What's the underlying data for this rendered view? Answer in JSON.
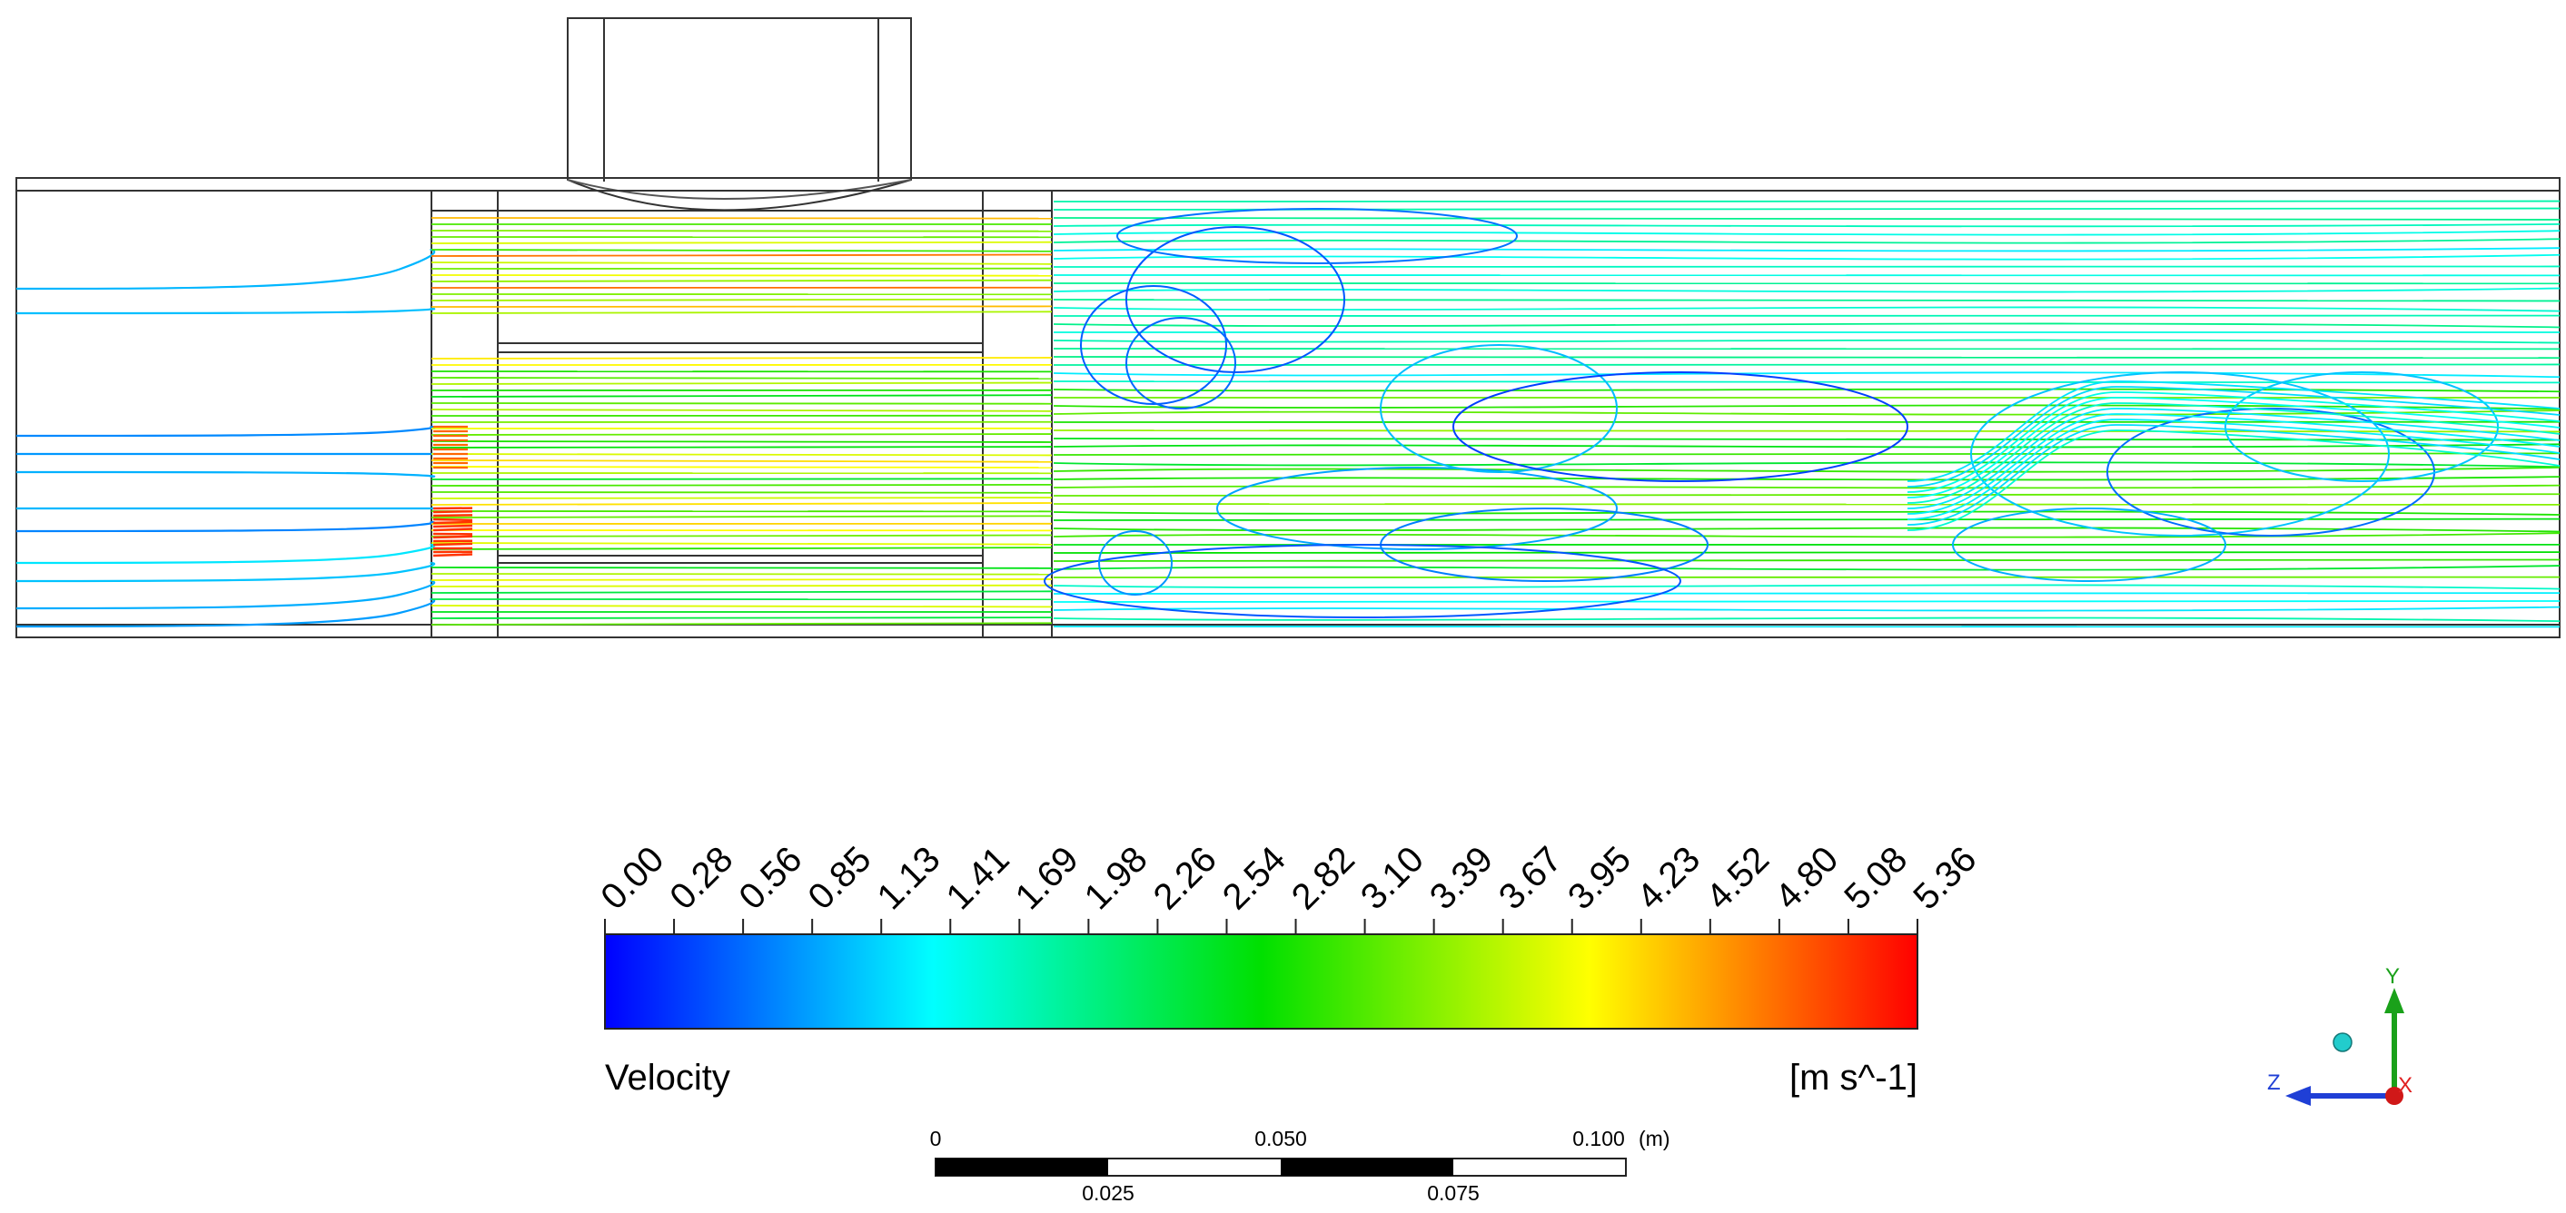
{
  "legend": {
    "variable": "Velocity",
    "unit": "[m s^-1]",
    "ticks": [
      "0.00",
      "0.28",
      "0.56",
      "0.85",
      "1.13",
      "1.41",
      "1.69",
      "1.98",
      "2.26",
      "2.54",
      "2.82",
      "3.10",
      "3.39",
      "3.67",
      "3.95",
      "4.23",
      "4.52",
      "4.80",
      "5.08",
      "5.36"
    ],
    "range": [
      0.0,
      5.36
    ],
    "colormap": [
      "#0000ff",
      "#00ffff",
      "#00ff00",
      "#ffff00",
      "#ff0000"
    ]
  },
  "scale_bar": {
    "top_labels": [
      "0",
      "0.050",
      "0.100"
    ],
    "bottom_labels": [
      "0.025",
      "0.075"
    ],
    "unit": "(m)"
  },
  "axes": {
    "x": {
      "label": "X",
      "color": "#e02020"
    },
    "y": {
      "label": "Y",
      "color": "#1aa11a"
    },
    "z": {
      "label": "Z",
      "color": "#1f3fd6"
    }
  }
}
